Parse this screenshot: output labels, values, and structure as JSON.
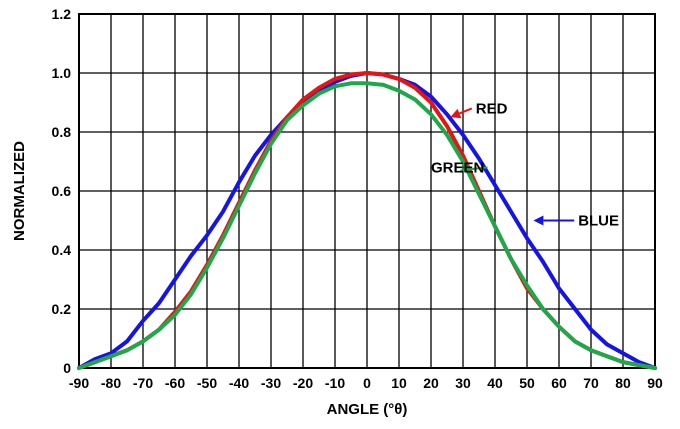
{
  "chart_data": {
    "type": "line",
    "xlabel": "ANGLE (°θ)",
    "ylabel": "NORMALIZED",
    "xlim": [
      -90,
      90
    ],
    "ylim": [
      0,
      1.2
    ],
    "x_ticks": [
      "-90",
      "-80",
      "-70",
      "-60",
      "-50",
      "-40",
      "-30",
      "-20",
      "-10",
      "0",
      "10",
      "20",
      "30",
      "40",
      "50",
      "60",
      "70",
      "80",
      "90"
    ],
    "y_ticks": [
      "0",
      "0.2",
      "0.4",
      "0.6",
      "0.8",
      "1.0",
      "1.2"
    ],
    "grid": true,
    "series": [
      {
        "name": "BLUE",
        "color": "#1414e6",
        "x": [
          -90,
          -85,
          -80,
          -75,
          -70,
          -65,
          -60,
          -55,
          -50,
          -45,
          -40,
          -35,
          -30,
          -25,
          -20,
          -15,
          -10,
          -5,
          0,
          5,
          10,
          15,
          20,
          25,
          30,
          35,
          40,
          45,
          50,
          55,
          60,
          65,
          70,
          75,
          80,
          85,
          90
        ],
        "y": [
          0,
          0.03,
          0.05,
          0.09,
          0.16,
          0.22,
          0.3,
          0.38,
          0.45,
          0.53,
          0.63,
          0.72,
          0.79,
          0.85,
          0.9,
          0.94,
          0.97,
          0.99,
          1.0,
          0.995,
          0.98,
          0.96,
          0.92,
          0.86,
          0.79,
          0.71,
          0.62,
          0.53,
          0.44,
          0.36,
          0.27,
          0.2,
          0.13,
          0.08,
          0.05,
          0.02,
          0
        ]
      },
      {
        "name": "RED",
        "color": "#e61414",
        "x": [
          -90,
          -85,
          -80,
          -75,
          -70,
          -65,
          -60,
          -55,
          -50,
          -45,
          -40,
          -35,
          -30,
          -25,
          -20,
          -15,
          -10,
          -5,
          0,
          5,
          10,
          15,
          20,
          25,
          30,
          35,
          40,
          45,
          50,
          55,
          60,
          65,
          70,
          75,
          80,
          85,
          90
        ],
        "y": [
          0,
          0.02,
          0.04,
          0.06,
          0.09,
          0.13,
          0.19,
          0.26,
          0.35,
          0.45,
          0.56,
          0.67,
          0.77,
          0.85,
          0.91,
          0.95,
          0.98,
          0.995,
          1.0,
          0.995,
          0.98,
          0.95,
          0.9,
          0.82,
          0.72,
          0.6,
          0.48,
          0.37,
          0.27,
          0.2,
          0.14,
          0.09,
          0.06,
          0.04,
          0.02,
          0.01,
          0
        ]
      },
      {
        "name": "GREEN",
        "color": "#1fa84a",
        "x": [
          -90,
          -85,
          -80,
          -75,
          -70,
          -65,
          -60,
          -55,
          -50,
          -45,
          -40,
          -35,
          -30,
          -25,
          -20,
          -15,
          -10,
          -5,
          0,
          5,
          10,
          15,
          20,
          25,
          30,
          35,
          40,
          45,
          50,
          55,
          60,
          65,
          70,
          75,
          80,
          85,
          90
        ],
        "y": [
          0,
          0.02,
          0.04,
          0.06,
          0.09,
          0.13,
          0.18,
          0.25,
          0.34,
          0.44,
          0.55,
          0.66,
          0.76,
          0.84,
          0.89,
          0.93,
          0.955,
          0.965,
          0.965,
          0.96,
          0.94,
          0.91,
          0.86,
          0.79,
          0.7,
          0.59,
          0.48,
          0.37,
          0.28,
          0.2,
          0.14,
          0.09,
          0.06,
          0.04,
          0.02,
          0.01,
          0
        ]
      }
    ],
    "annotations": [
      {
        "series": "RED",
        "text": "RED",
        "label_x": 34,
        "label_y": 0.88,
        "arrow_to_x": 26,
        "arrow_to_y": 0.85
      },
      {
        "series": "GREEN",
        "text": "GREEN",
        "label_x": 20,
        "label_y": 0.68,
        "arrow_to_x": 29,
        "arrow_to_y": 0.67
      },
      {
        "series": "BLUE",
        "text": "BLUE",
        "label_x": 66,
        "label_y": 0.5,
        "arrow_to_x": 52,
        "arrow_to_y": 0.5
      }
    ]
  }
}
